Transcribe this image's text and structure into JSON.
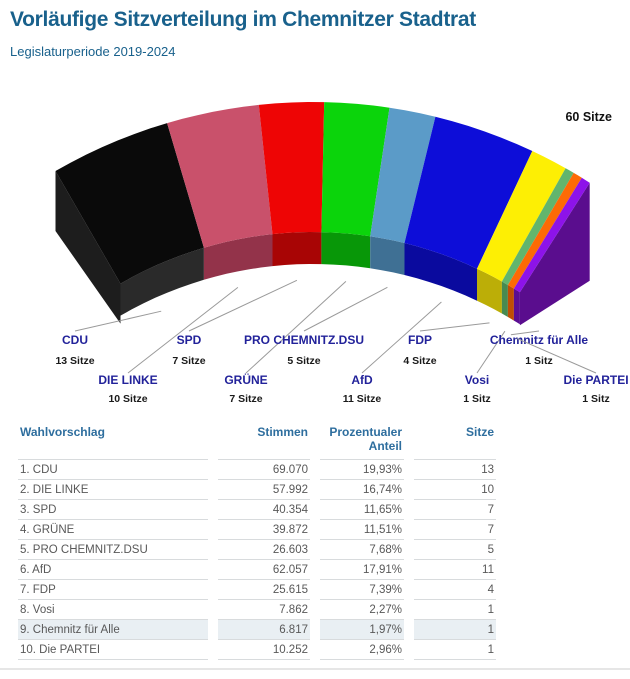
{
  "header": {
    "title": "Vorläufige Sitzverteilung im Chemnitzer Stadtrat",
    "subtitle": "Legislaturperiode 2019-2024"
  },
  "colors": {
    "title_blue": "#19618c",
    "table_header_blue": "#2e6e9e",
    "party_label_navy": "#22229a",
    "row_highlight": "#e9eff3",
    "table_border": "#d8dbdd"
  },
  "chart_data": {
    "type": "pie",
    "style": "3d-half-donut-fan",
    "title": "Vorläufige Sitzverteilung im Chemnitzer Stadtrat",
    "total_seats": 60,
    "total_label": "60 Sitze",
    "legend_position": "below-with-leader-lines",
    "cap_color": "#5a0d8e",
    "left_face_color": "#1d1d1d",
    "series": [
      {
        "name": "CDU",
        "seats": 13,
        "seat_label": "13 Sitze",
        "color": "#0a0a0a",
        "dark_color": "#2a2a2a"
      },
      {
        "name": "DIE LINKE",
        "seats": 10,
        "seat_label": "10 Sitze",
        "color": "#c9516b",
        "dark_color": "#93334a"
      },
      {
        "name": "SPD",
        "seats": 7,
        "seat_label": "7 Sitze",
        "color": "#ee0505",
        "dark_color": "#a80505"
      },
      {
        "name": "GRÜNE",
        "seats": 7,
        "seat_label": "7 Sitze",
        "color": "#0bd40b",
        "dark_color": "#089708"
      },
      {
        "name": "PRO CHEMNITZ.DSU",
        "seats": 5,
        "seat_label": "5 Sitze",
        "color": "#5b9bc8",
        "dark_color": "#3f7094"
      },
      {
        "name": "AfD",
        "seats": 11,
        "seat_label": "11 Sitze",
        "color": "#0d0dd8",
        "dark_color": "#0a0a9e"
      },
      {
        "name": "FDP",
        "seats": 4,
        "seat_label": "4 Sitze",
        "color": "#fdef04",
        "dark_color": "#bcae07"
      },
      {
        "name": "Vosi",
        "seats": 1,
        "seat_label": "1 Sitz",
        "color": "#62b56d",
        "dark_color": "#478a50"
      },
      {
        "name": "Chemnitz für Alle",
        "seats": 1,
        "seat_label": "1 Sitz",
        "color": "#fd6a05",
        "dark_color": "#bf4e03"
      },
      {
        "name": "Die PARTEI",
        "seats": 1,
        "seat_label": "1 Sitz",
        "color": "#8d13e9",
        "dark_color": "#5a0d92"
      }
    ]
  },
  "table": {
    "headers": {
      "party": "Wahlvorschlag",
      "votes": "Stimmen",
      "percent": "Prozentualer Anteil",
      "seats": "Sitze"
    },
    "rows": [
      {
        "party": "1. CDU",
        "votes": "69.070",
        "percent": "19,93%",
        "seats": "13"
      },
      {
        "party": "2. DIE LINKE",
        "votes": "57.992",
        "percent": "16,74%",
        "seats": "10"
      },
      {
        "party": "3. SPD",
        "votes": "40.354",
        "percent": "11,65%",
        "seats": "7"
      },
      {
        "party": "4. GRÜNE",
        "votes": "39.872",
        "percent": "11,51%",
        "seats": "7"
      },
      {
        "party": "5. PRO CHEMNITZ.DSU",
        "votes": "26.603",
        "percent": "7,68%",
        "seats": "5"
      },
      {
        "party": "6. AfD",
        "votes": "62.057",
        "percent": "17,91%",
        "seats": "11"
      },
      {
        "party": "7. FDP",
        "votes": "25.615",
        "percent": "7,39%",
        "seats": "4"
      },
      {
        "party": "8. Vosi",
        "votes": "7.862",
        "percent": "2,27%",
        "seats": "1"
      },
      {
        "party": "9. Chemnitz für Alle",
        "votes": "6.817",
        "percent": "1,97%",
        "seats": "1"
      },
      {
        "party": "10. Die PARTEI",
        "votes": "10.252",
        "percent": "2,96%",
        "seats": "1"
      }
    ],
    "highlighted_row_index": 8
  }
}
